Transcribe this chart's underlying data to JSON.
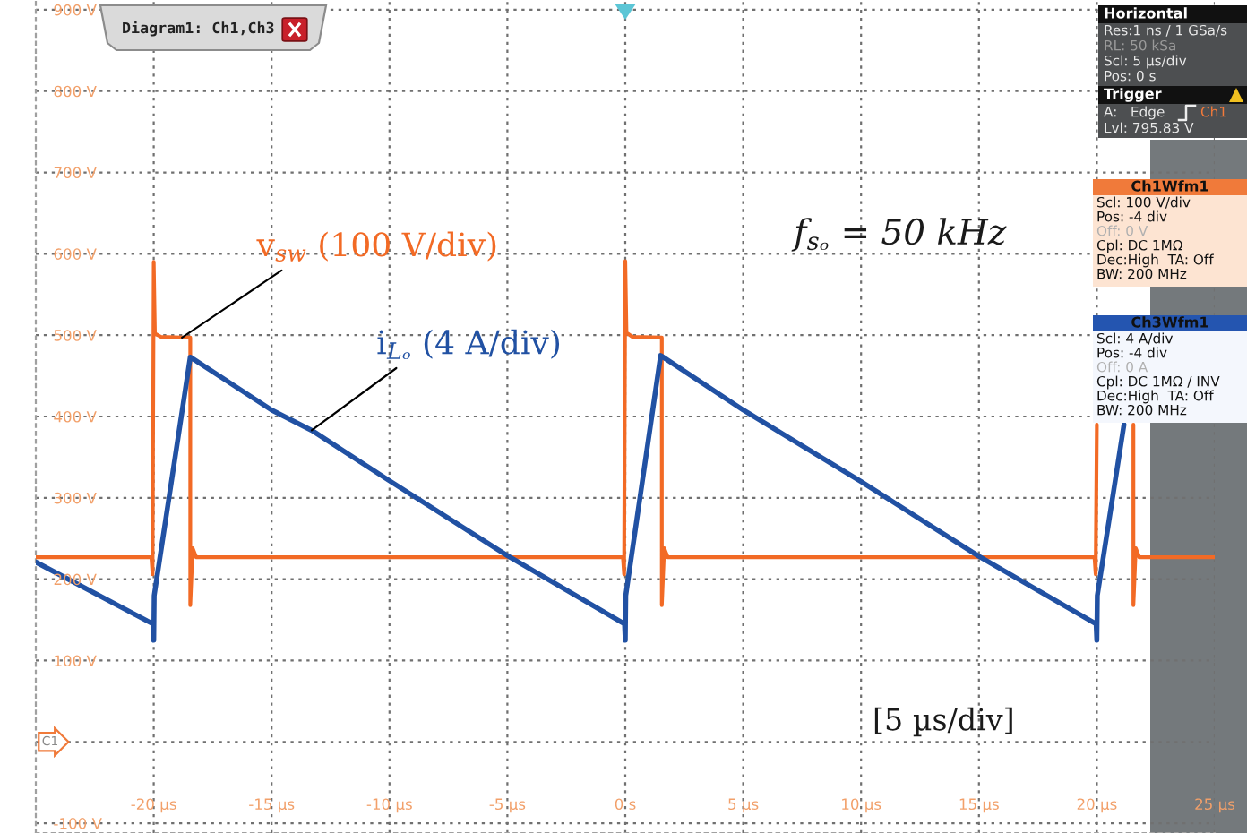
{
  "chart_data": {
    "type": "line",
    "xlim": [
      -25,
      25
    ],
    "xticks": [
      {
        "value": -20,
        "label": "-20 µs"
      },
      {
        "value": -15,
        "label": "-15 µs"
      },
      {
        "value": -10,
        "label": "-10 µs"
      },
      {
        "value": -5,
        "label": "-5 µs"
      },
      {
        "value": 0,
        "label": "0 s"
      },
      {
        "value": 5,
        "label": "5 µs"
      },
      {
        "value": 10,
        "label": "10 µs"
      },
      {
        "value": 15,
        "label": "15 µs"
      },
      {
        "value": 20,
        "label": "20 µs"
      },
      {
        "value": 25,
        "label": "25 µs"
      }
    ],
    "ylim": [
      -112,
      912
    ],
    "yticks": [
      {
        "value": -100,
        "label": "-100 V"
      },
      {
        "value": 0,
        "label": null
      },
      {
        "value": 100,
        "label": "100 V"
      },
      {
        "value": 200,
        "label": "200 V"
      },
      {
        "value": 300,
        "label": "300 V"
      },
      {
        "value": 400,
        "label": "400 V"
      },
      {
        "value": 500,
        "label": "500 V"
      },
      {
        "value": 600,
        "label": "600 V"
      },
      {
        "value": 700,
        "label": "700 V"
      },
      {
        "value": 800,
        "label": "800 V"
      },
      {
        "value": 900,
        "label": "900 V"
      }
    ],
    "grid": true,
    "series": [
      {
        "name": "v$_{sw}$ (100 V/div)",
        "color": "#f26a25",
        "x": [
          -25,
          -20.1,
          -20.05,
          -20,
          -19.95,
          -19.7,
          -18.8,
          -18.45,
          -18.45,
          -18.35,
          -18.2,
          -0.1,
          -0.05,
          0,
          0.05,
          0.3,
          1.55,
          1.55,
          1.65,
          1.8,
          19.9,
          19.95,
          20,
          20.8,
          21.55,
          21.55,
          21.65,
          21.8,
          25
        ],
        "values": [
          227,
          227,
          206,
          590,
          502,
          498,
          497,
          497,
          168,
          238,
          227,
          227,
          206,
          591,
          503,
          498,
          497,
          168,
          238,
          227,
          227,
          206,
          390,
          null,
          390,
          168,
          238,
          227,
          227
        ]
      },
      {
        "name": "i$_{Lₒ}$ (4 A/div)",
        "color": "#2151a3",
        "x": [
          -25,
          -20.03,
          -20,
          -19.98,
          -18.45,
          -15,
          -13.3,
          -10,
          -5,
          -0.03,
          0,
          0.02,
          1.5,
          5,
          10,
          15,
          19.97,
          20,
          20.02,
          21.15
        ],
        "values": [
          221,
          145,
          125,
          180,
          473,
          408,
          383,
          321,
          229,
          145,
          125,
          180,
          475,
          408,
          320,
          228,
          145,
          125,
          180,
          390
        ]
      }
    ],
    "annotations": [
      "f$_{sₒ}$ = 50 kHz",
      "[5 µs/div]",
      "Diagram1: Ch1,Ch3",
      "C1",
      "Horizontal",
      "Res:1 ns / 1 GSa/s",
      "RL: 50 kSa",
      "Scl: 5 µs/div",
      "Pos: 0 s",
      "Trigger",
      "A:   Edge",
      "Ch1",
      "Lvl: 795.83 V",
      "Ch1Wfm1",
      "Scl: 100 V/div",
      "Pos: -4 div",
      "Off: 0 V",
      "Cpl: DC 1MΩ",
      "Dec:High  TA: Off",
      "BW: 200 MHz",
      "Ch3Wfm1",
      "Scl: 4 A/div",
      "Pos: -4 div",
      "Off: 0 A",
      "Cpl: DC 1MΩ / INV",
      "Dec:High  TA: Off",
      "BW: 200 MHz"
    ]
  }
}
